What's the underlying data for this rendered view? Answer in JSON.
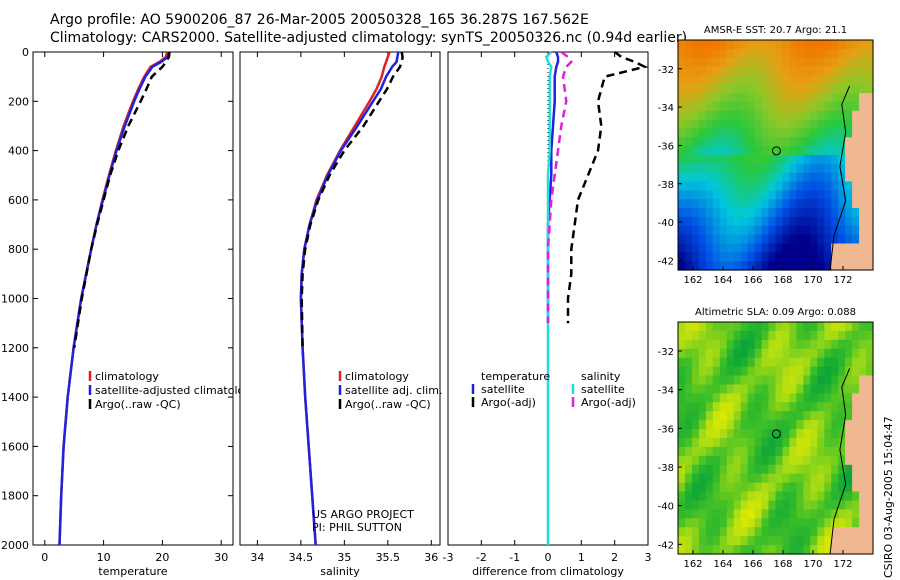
{
  "header": {
    "line1": "Argo profile: AO 5900206_87 26-Mar-2005 20050328_165 36.287S 167.562E",
    "line2": "Climatology: CARS2000. Satellite-adjusted climatology: synTS_20050326.nc (0.94d earlier)"
  },
  "stamp": "CSIRO 03-Aug-2005 15:04:47",
  "colors": {
    "climatology": "#dd2222",
    "satellite": "#2222dd",
    "argo": "#000000",
    "sal_satellite": "#22dddd",
    "sal_argo": "#dd22dd"
  },
  "chart_data": [
    {
      "type": "line",
      "panel": "temperature",
      "xlabel": "temperature",
      "xlim": [
        -2,
        32
      ],
      "ylim": [
        2000,
        0
      ],
      "xticks": [
        0,
        10,
        20,
        30
      ],
      "yticks": [
        0,
        200,
        400,
        600,
        800,
        1000,
        1200,
        1400,
        1600,
        1800,
        2000
      ],
      "depth": [
        0,
        20,
        40,
        60,
        100,
        150,
        200,
        300,
        400,
        500,
        600,
        700,
        800,
        1000,
        1200,
        1400,
        1600,
        1800,
        2000
      ],
      "series": [
        {
          "name": "climatology",
          "values": [
            20.8,
            20.6,
            19.5,
            18.0,
            16.9,
            15.9,
            15.0,
            13.4,
            12.1,
            10.9,
            9.8,
            8.8,
            7.9,
            6.2,
            4.9,
            3.9,
            3.2,
            2.8,
            2.5
          ]
        },
        {
          "name": "satellite-adjusted climatology",
          "values": [
            21.1,
            20.9,
            19.8,
            18.3,
            17.1,
            16.1,
            15.2,
            13.6,
            12.2,
            11.0,
            9.9,
            8.8,
            7.9,
            6.2,
            4.9,
            3.9,
            3.2,
            2.8,
            2.5
          ]
        },
        {
          "name": "Argo(..raw -QC)",
          "values": [
            21.2,
            21.1,
            20.6,
            20.0,
            18.2,
            17.3,
            16.3,
            14.2,
            12.5,
            11.1,
            10.0,
            8.9,
            7.9,
            6.3,
            5.0
          ]
        }
      ],
      "legend": [
        "climatology",
        "satellite-adjusted climatology",
        "Argo(..raw -QC)"
      ]
    },
    {
      "type": "line",
      "panel": "salinity",
      "xlabel": "salinity",
      "xlim": [
        33.8,
        36.1
      ],
      "ylim": [
        2000,
        0
      ],
      "xticks": [
        34,
        34.5,
        35,
        35.5,
        36
      ],
      "xticklabels": [
        "34",
        "34.5",
        "35",
        "35.5",
        "36"
      ],
      "depth": [
        0,
        20,
        40,
        60,
        100,
        150,
        200,
        300,
        400,
        500,
        600,
        700,
        800,
        900,
        1000,
        1200,
        1400,
        1600,
        1800,
        2000
      ],
      "series": [
        {
          "name": "climatology",
          "values": [
            35.52,
            35.5,
            35.48,
            35.46,
            35.43,
            35.37,
            35.29,
            35.12,
            34.95,
            34.8,
            34.68,
            34.6,
            34.54,
            34.51,
            34.5,
            34.52,
            34.55,
            34.59,
            34.63,
            34.67
          ]
        },
        {
          "name": "satellite adj. clim.",
          "values": [
            35.62,
            35.61,
            35.6,
            35.55,
            35.48,
            35.42,
            35.33,
            35.15,
            34.96,
            34.81,
            34.69,
            34.6,
            34.54,
            34.51,
            34.5,
            34.52,
            34.55,
            34.59,
            34.63,
            34.67
          ]
        },
        {
          "name": "Argo(..raw -QC)",
          "values": [
            35.66,
            35.67,
            35.66,
            35.64,
            35.56,
            35.49,
            35.4,
            35.22,
            35.0,
            34.83,
            34.7,
            34.61,
            34.55,
            34.52,
            34.51,
            34.52
          ]
        }
      ],
      "legend": [
        "climatology",
        "satellite adj. clim.",
        "Argo(..raw -QC)"
      ],
      "annotation": [
        "US ARGO PROJECT",
        "PI: PHIL SUTTON"
      ]
    },
    {
      "type": "line",
      "panel": "difference",
      "xlabel": "difference from climatology",
      "xlim": [
        -3,
        3
      ],
      "ylim": [
        2000,
        0
      ],
      "xticks": [
        -3,
        -2,
        -1,
        0,
        1,
        2,
        3
      ],
      "depth": [
        0,
        20,
        40,
        60,
        100,
        200,
        300,
        400,
        500,
        600,
        700,
        800,
        900,
        1000,
        1100
      ],
      "series": [
        {
          "name": "temperature satellite",
          "values": [
            0.25,
            0.3,
            0.3,
            0.25,
            0.2,
            0.2,
            0.15,
            0.1,
            0.1,
            0.05,
            0.0,
            0.0,
            0.0,
            0.0,
            0.0
          ]
        },
        {
          "name": "temperature Argo(-adj)",
          "values": [
            2.0,
            2.2,
            2.6,
            2.9,
            1.7,
            1.5,
            1.6,
            1.5,
            1.2,
            0.9,
            0.8,
            0.7,
            0.7,
            0.6,
            0.6
          ]
        },
        {
          "name": "salinity satellite",
          "values": [
            0.1,
            -0.05,
            0.0,
            0.1,
            0.05,
            0.05,
            0.05,
            0.05,
            0.0,
            0.0,
            0.0,
            0.0,
            0.0,
            0.0,
            0.0
          ]
        },
        {
          "name": "salinity Argo(-adj)",
          "values": [
            0.4,
            0.6,
            0.7,
            0.55,
            0.45,
            0.55,
            0.4,
            0.3,
            0.2,
            0.1,
            0.05,
            0.0,
            0.0,
            0.0,
            0.0
          ]
        }
      ],
      "legend_left": {
        "title": "temperature",
        "items": [
          "satellite",
          "Argo(-adj)"
        ]
      },
      "legend_right": {
        "title": "salinity",
        "items": [
          "satellite",
          "Argo(-adj)"
        ]
      }
    },
    {
      "type": "heatmap",
      "panel": "sst_map",
      "title": "AMSR-E SST: 20.7 Argo: 21.1",
      "xlim": [
        161,
        174
      ],
      "ylim": [
        -42.5,
        -30.5
      ],
      "xticks": [
        162,
        164,
        166,
        168,
        170,
        172
      ],
      "yticks": [
        -32,
        -34,
        -36,
        -38,
        -40,
        -42
      ],
      "marker": {
        "lon": 167.562,
        "lat": -36.287
      }
    },
    {
      "type": "heatmap",
      "panel": "sla_map",
      "title": "Altimetric SLA: 0.09 Argo: 0.088",
      "xlim": [
        161,
        174
      ],
      "ylim": [
        -42.5,
        -30.5
      ],
      "xticks": [
        162,
        164,
        166,
        168,
        170,
        172
      ],
      "yticks": [
        -32,
        -34,
        -36,
        -38,
        -40,
        -42
      ],
      "marker": {
        "lon": 167.562,
        "lat": -36.287
      }
    }
  ]
}
